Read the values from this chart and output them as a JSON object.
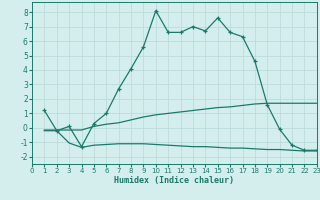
{
  "line1_x": [
    1,
    2,
    3,
    4,
    5,
    6,
    7,
    8,
    9,
    10,
    11,
    12,
    13,
    14,
    15,
    16,
    17,
    18,
    19,
    20,
    21,
    22,
    23
  ],
  "line1_y": [
    1.2,
    -0.2,
    0.1,
    -1.3,
    0.3,
    1.0,
    2.7,
    4.1,
    5.6,
    8.1,
    6.6,
    6.6,
    7.0,
    6.7,
    7.6,
    6.6,
    6.3,
    4.6,
    1.6,
    -0.1,
    -1.2,
    -1.55,
    -1.55
  ],
  "line2_x": [
    1,
    2,
    3,
    4,
    5,
    6,
    7,
    8,
    9,
    10,
    11,
    12,
    13,
    14,
    15,
    16,
    17,
    18,
    19,
    20,
    21,
    22,
    23
  ],
  "line2_y": [
    -0.15,
    -0.15,
    -0.15,
    -0.15,
    0.1,
    0.25,
    0.35,
    0.55,
    0.75,
    0.9,
    1.0,
    1.1,
    1.2,
    1.3,
    1.4,
    1.45,
    1.55,
    1.65,
    1.7,
    1.7,
    1.7,
    1.7,
    1.7
  ],
  "line3_x": [
    1,
    2,
    3,
    4,
    5,
    6,
    7,
    8,
    9,
    10,
    11,
    12,
    13,
    14,
    15,
    16,
    17,
    18,
    19,
    20,
    21,
    22,
    23
  ],
  "line3_y": [
    -0.2,
    -0.2,
    -1.05,
    -1.35,
    -1.2,
    -1.15,
    -1.1,
    -1.1,
    -1.1,
    -1.15,
    -1.2,
    -1.25,
    -1.3,
    -1.3,
    -1.35,
    -1.4,
    -1.4,
    -1.45,
    -1.5,
    -1.5,
    -1.55,
    -1.6,
    -1.6
  ],
  "color": "#1a7a6a",
  "bg_color": "#d4eeee",
  "grid_color": "#b8d8d8",
  "xlabel": "Humidex (Indice chaleur)",
  "xlim": [
    0,
    23
  ],
  "ylim": [
    -2.5,
    8.7
  ],
  "yticks": [
    -2,
    -1,
    0,
    1,
    2,
    3,
    4,
    5,
    6,
    7,
    8
  ],
  "xticks": [
    0,
    1,
    2,
    3,
    4,
    5,
    6,
    7,
    8,
    9,
    10,
    11,
    12,
    13,
    14,
    15,
    16,
    17,
    18,
    19,
    20,
    21,
    22,
    23
  ]
}
